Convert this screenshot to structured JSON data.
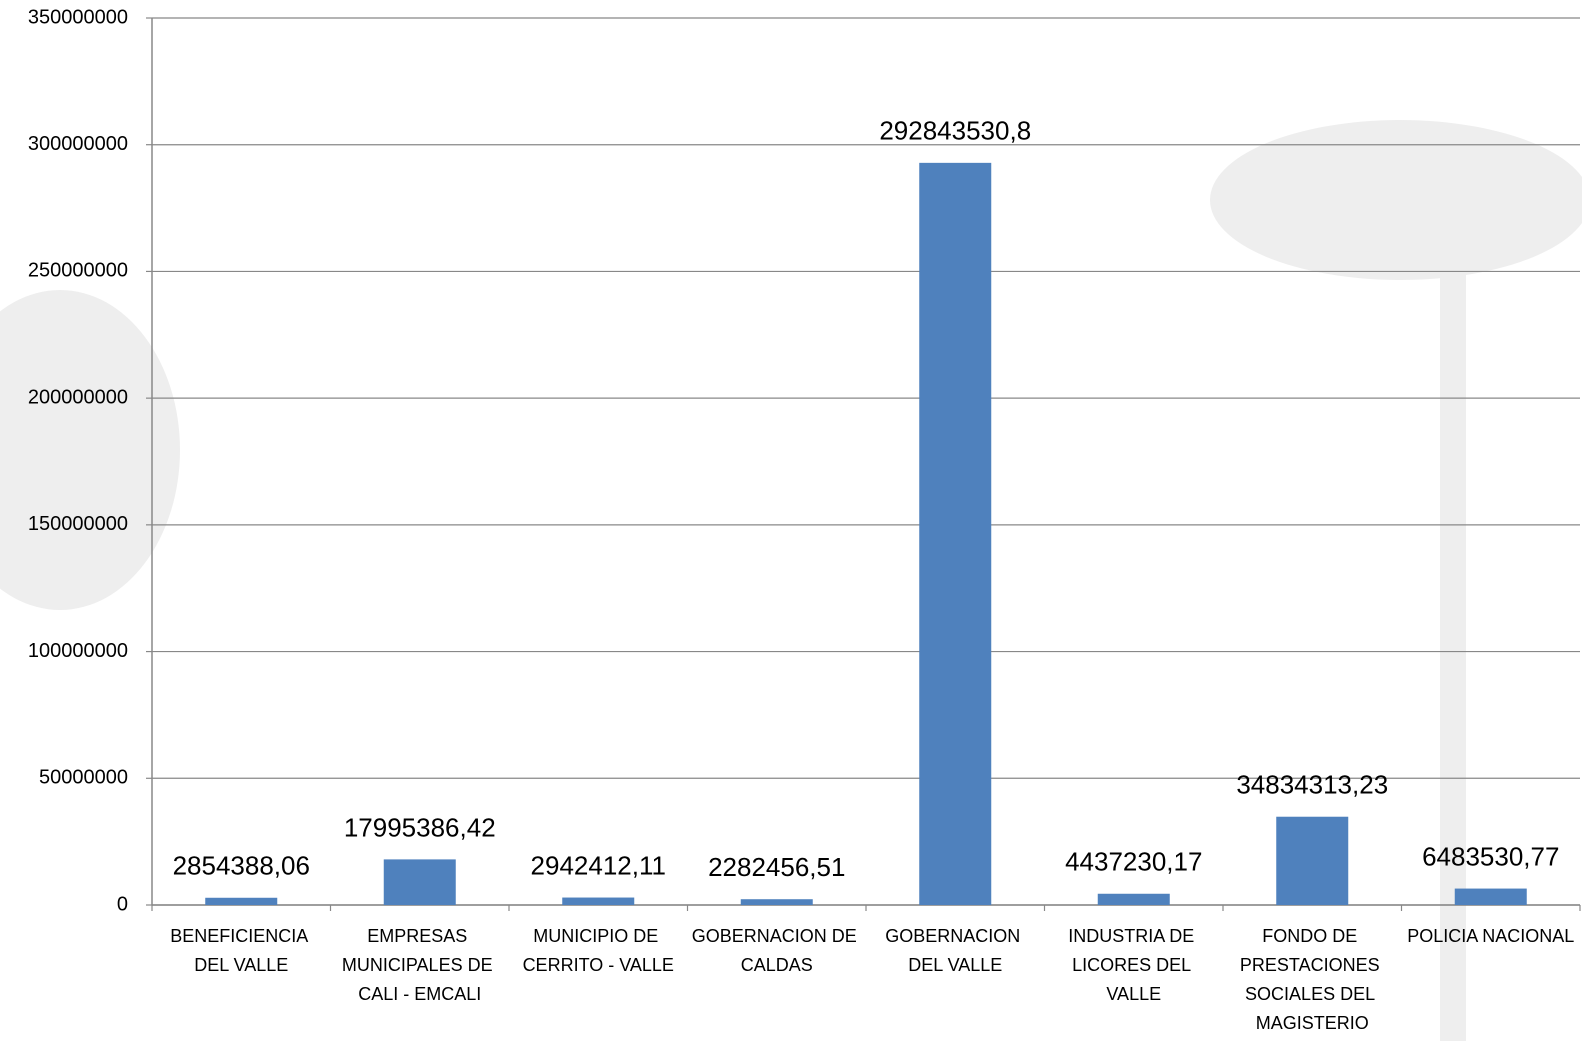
{
  "chart_data": {
    "type": "bar",
    "categories": [
      "BENEFICIENCIA DEL VALLE",
      "EMPRESAS MUNICIPALES DE CALI - EMCALI",
      "MUNICIPIO DE CERRITO - VALLE",
      "GOBERNACION DE CALDAS",
      "GOBERNACION DEL VALLE",
      "INDUSTRIA DE LICORES DEL VALLE",
      "FONDO DE PRESTACIONES SOCIALES DEL MAGISTERIO",
      "POLICIA NACIONAL"
    ],
    "values": [
      2854388.06,
      17995386.42,
      2942412.11,
      2282456.51,
      292843530.8,
      4437230.17,
      34834313.23,
      6483530.77
    ],
    "value_labels": [
      "2854388,06",
      "17995386,42",
      "2942412,11",
      "2282456,51",
      "292843530,8",
      "4437230,17",
      "34834313,23",
      "6483530,77"
    ],
    "color": "#4f81bd",
    "ylim": [
      0,
      350000000
    ],
    "yticks": [
      0,
      50000000,
      100000000,
      150000000,
      200000000,
      250000000,
      300000000,
      350000000
    ],
    "grid": true
  }
}
